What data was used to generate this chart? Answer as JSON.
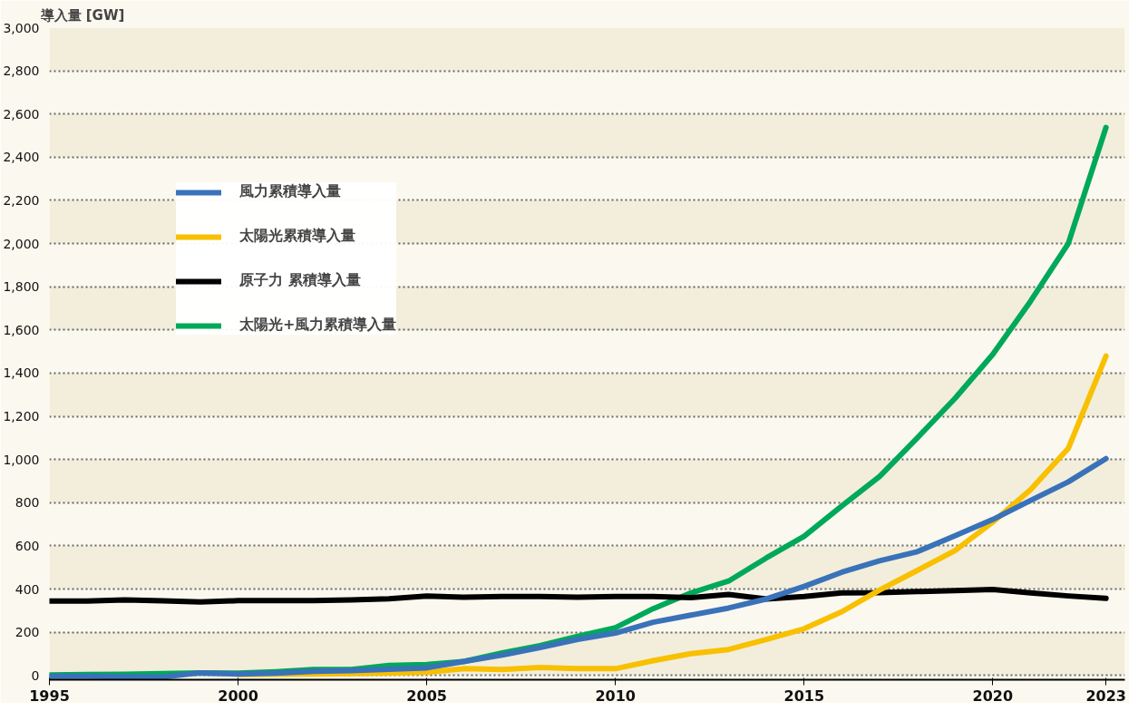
{
  "chart_data": {
    "type": "line",
    "ylabel": "導入量 [GW]",
    "x": [
      1995,
      1996,
      1997,
      1998,
      1999,
      2000,
      2001,
      2002,
      2003,
      2004,
      2005,
      2006,
      2007,
      2008,
      2009,
      2010,
      2011,
      2012,
      2013,
      2014,
      2015,
      2016,
      2017,
      2018,
      2019,
      2020,
      2021,
      2022,
      2023
    ],
    "series": [
      {
        "name": "風力累積導入量",
        "color": "#3a72b9",
        "values": [
          -4,
          -4,
          -6,
          -8,
          12,
          6,
          10,
          19,
          22,
          28,
          35,
          65,
          94,
          129,
          167,
          196,
          246,
          279,
          312,
          354,
          412,
          478,
          531,
          573,
          647,
          722,
          810,
          896,
          1004
        ]
      },
      {
        "name": "太陽光累積導入量",
        "color": "#f8c000",
        "x": [
          2000,
          2001,
          2002,
          2003,
          2004,
          2005,
          2006,
          2007,
          2008,
          2009,
          2010,
          2011,
          2012,
          2013,
          2014,
          2015,
          2016,
          2017,
          2018,
          2019,
          2020,
          2021,
          2022,
          2023
        ],
        "values": [
          4,
          5,
          6,
          8,
          10,
          15,
          31,
          27,
          37,
          31,
          31,
          68,
          101,
          120,
          166,
          216,
          295,
          395,
          486,
          578,
          710,
          860,
          1051,
          1479
        ]
      },
      {
        "name": "原子力 累積導入量",
        "color": "#000000",
        "values": [
          344,
          344,
          350,
          345,
          340,
          346,
          346,
          346,
          350,
          355,
          367,
          362,
          365,
          365,
          362,
          365,
          365,
          360,
          375,
          354,
          365,
          382,
          383,
          388,
          393,
          398,
          382,
          368,
          357
        ]
      },
      {
        "name": "太陽光+風力累積導入量",
        "color": "#00a85a",
        "values": [
          2,
          4,
          5,
          8,
          12,
          10,
          17,
          27,
          27,
          46,
          50,
          65,
          104,
          138,
          181,
          221,
          309,
          382,
          437,
          544,
          644,
          785,
          921,
          1100,
          1283,
          1487,
          1733,
          2000,
          2538
        ]
      }
    ],
    "xlim": [
      1995,
      2023.5
    ],
    "xticks": [
      1995,
      2000,
      2005,
      2010,
      2015,
      2020,
      2023
    ],
    "ylim": [
      -20,
      3000
    ],
    "yticks": [
      0,
      {
        "value": 200,
        "label": "200"
      },
      {
        "value": 400,
        "label": "400"
      },
      {
        "value": 600,
        "label": "600"
      },
      {
        "value": 800,
        "label": "800"
      },
      {
        "value": 1000,
        "label": "1,000"
      },
      {
        "value": 1200,
        "label": "1,200"
      },
      {
        "value": 1400,
        "label": "1,400"
      },
      {
        "value": 1600,
        "label": "1,600"
      },
      {
        "value": 1800,
        "label": "1,800"
      },
      {
        "value": 2000,
        "label": "2,000"
      },
      {
        "value": 2200,
        "label": "2,200"
      },
      {
        "value": 2400,
        "label": "2,400"
      },
      {
        "value": 2600,
        "label": "2,600"
      },
      {
        "value": 2800,
        "label": "2,800"
      },
      {
        "value": 3000,
        "label": "3,000"
      }
    ],
    "grid": "y",
    "legend": "top left",
    "line_style": "solid",
    "marker": "none"
  }
}
